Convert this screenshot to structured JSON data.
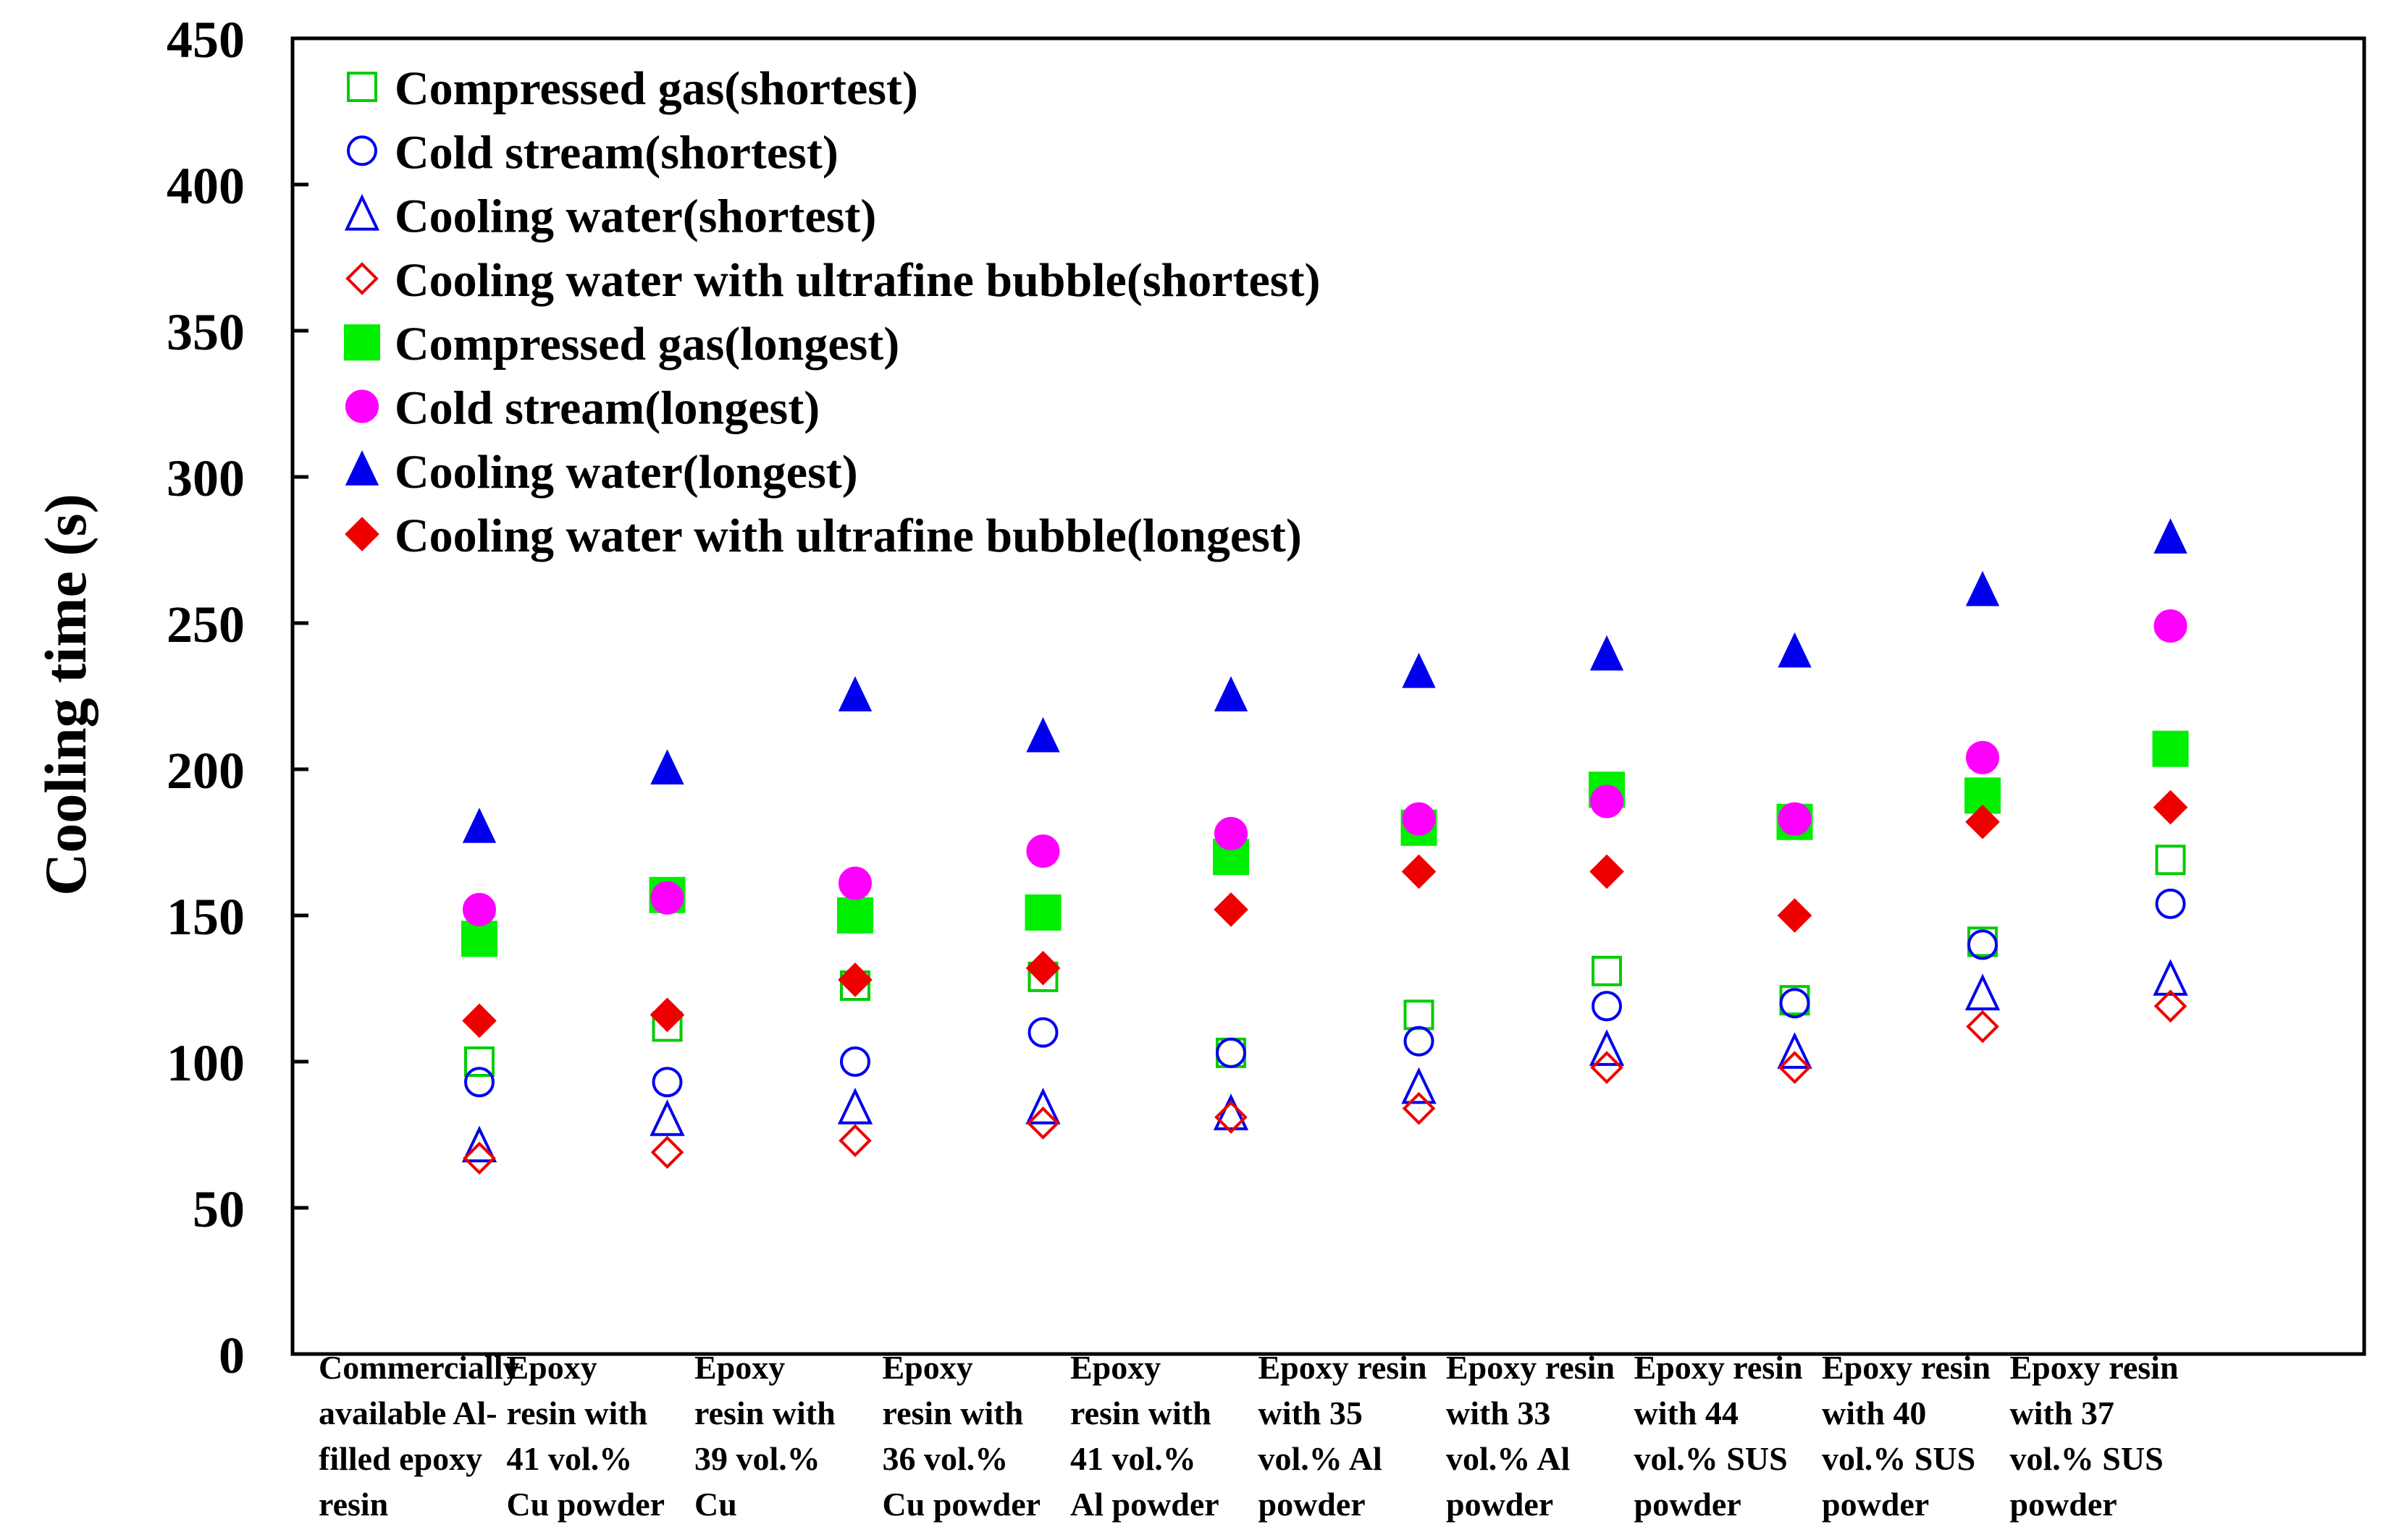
{
  "chart_data": {
    "type": "scatter",
    "title": "",
    "xlabel": "",
    "ylabel": "Cooling time (s)",
    "ylim": [
      0,
      450
    ],
    "yticks": [
      0,
      50,
      100,
      150,
      200,
      250,
      300,
      350,
      400,
      450
    ],
    "grid": false,
    "legend_position": "top-left",
    "categories": [
      [
        "Commercially",
        "available Al-",
        "filled epoxy",
        "resin"
      ],
      [
        "Epoxy",
        "resin with",
        "41 vol.%",
        "Cu powder"
      ],
      [
        "Epoxy",
        "resin with",
        "39 vol.%",
        "Cu"
      ],
      [
        "Epoxy",
        "resin with",
        "36 vol.%",
        "Cu powder"
      ],
      [
        "Epoxy",
        "resin with",
        "41 vol.%",
        "Al powder"
      ],
      [
        "Epoxy resin",
        "with 35",
        "vol.% Al",
        "powder"
      ],
      [
        "Epoxy resin",
        "with 33",
        "vol.% Al",
        "powder"
      ],
      [
        "Epoxy resin",
        "with 44",
        "vol.% SUS",
        "powder"
      ],
      [
        "Epoxy resin",
        "with 40",
        "vol.% SUS",
        "powder"
      ],
      [
        "Epoxy resin",
        "with 37",
        "vol.% SUS",
        "powder"
      ]
    ],
    "series": [
      {
        "name": "Compressed gas(shortest)",
        "marker": "square",
        "filled": false,
        "color": "#00cc00",
        "values": [
          100,
          112,
          126,
          129,
          103,
          116,
          131,
          121,
          141,
          169
        ]
      },
      {
        "name": "Cold stream(shortest)",
        "marker": "circle",
        "filled": false,
        "color": "#0000ee",
        "values": [
          93,
          93,
          100,
          110,
          103,
          107,
          119,
          120,
          140,
          154
        ]
      },
      {
        "name": "Cooling water(shortest)",
        "marker": "triangle",
        "filled": false,
        "color": "#0000ee",
        "values": [
          71,
          80,
          84,
          84,
          82,
          91,
          104,
          103,
          123,
          128
        ]
      },
      {
        "name": "Cooling water with ultrafine bubble(shortest)",
        "marker": "diamond",
        "filled": false,
        "color": "#ee0000",
        "values": [
          67,
          69,
          73,
          79,
          81,
          84,
          98,
          98,
          112,
          119
        ]
      },
      {
        "name": "Compressed gas(longest)",
        "marker": "square",
        "filled": true,
        "color": "#00ee00",
        "values": [
          142,
          157,
          150,
          151,
          170,
          180,
          193,
          182,
          191,
          207
        ]
      },
      {
        "name": "Cold stream(longest)",
        "marker": "circle",
        "filled": true,
        "color": "#ff00ff",
        "values": [
          152,
          156,
          161,
          172,
          178,
          183,
          189,
          183,
          204,
          249
        ]
      },
      {
        "name": "Cooling water(longest)",
        "marker": "triangle",
        "filled": true,
        "color": "#0000ee",
        "values": [
          180,
          200,
          225,
          211,
          225,
          233,
          239,
          240,
          261,
          279
        ]
      },
      {
        "name": "Cooling water with ultrafine bubble(longest)",
        "marker": "diamond",
        "filled": true,
        "color": "#ee0000",
        "values": [
          114,
          116,
          128,
          132,
          152,
          165,
          165,
          150,
          182,
          187
        ]
      }
    ]
  }
}
